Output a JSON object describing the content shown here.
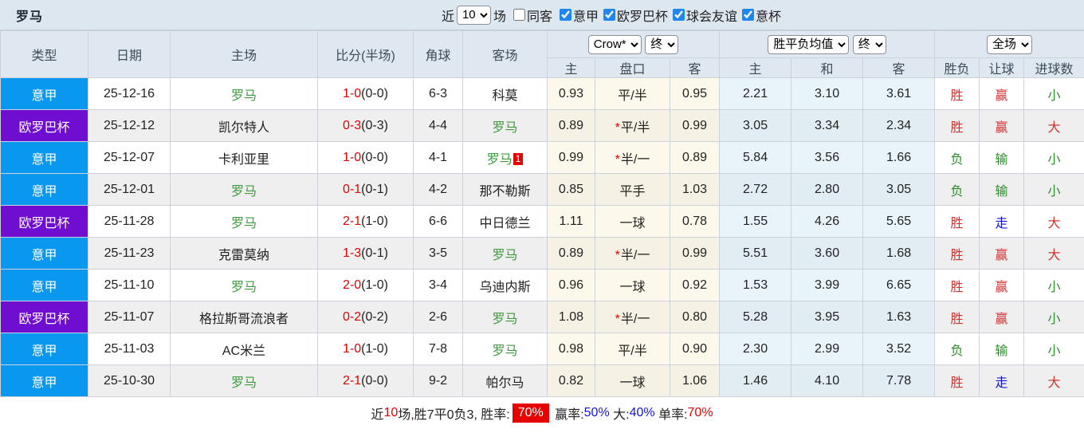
{
  "title": "罗马",
  "filter_bar": {
    "recent_label": "近",
    "recent_value": "10",
    "games_label": "场",
    "same_venue": {
      "label": "同客",
      "checked": false
    },
    "leagues": [
      {
        "label": "意甲",
        "checked": true
      },
      {
        "label": "欧罗巴杯",
        "checked": true
      },
      {
        "label": "球会友谊",
        "checked": true
      },
      {
        "label": "意杯",
        "checked": true
      }
    ]
  },
  "colors": {
    "serie_a": "#0a97ef",
    "europa": "#6f0dd0",
    "r": "#d7312e",
    "g": "#2e8b2e",
    "b": "#1414dc",
    "score_red": "#e60000"
  },
  "table": {
    "main_headers": [
      "类型",
      "日期",
      "主场",
      "比分(半场)",
      "角球",
      "客场"
    ],
    "selects": {
      "odds_source": "Crow*",
      "odds_source_time": "终",
      "avg_source": "胜平负均值",
      "avg_source_time": "终",
      "scope": "全场"
    },
    "sub_headers": [
      "主",
      "盘口",
      "客",
      "主",
      "和",
      "客",
      "胜负",
      "让球",
      "进球数"
    ],
    "rows": [
      {
        "league": "意甲",
        "lc": "serie_a",
        "date": "25-12-16",
        "home": "罗马",
        "home_roma": true,
        "score": "1-0",
        "half": "(0-0)",
        "corner": "6-3",
        "away": "科莫",
        "away_roma": false,
        "away_card": "",
        "star": false,
        "o1": "0.93",
        "hcap": "平/半",
        "o2": "0.95",
        "a1": "2.21",
        "a2": "3.10",
        "a3": "3.61",
        "spf": [
          "胜",
          "r"
        ],
        "rq": [
          "赢",
          "r"
        ],
        "jq": [
          "小",
          "g"
        ]
      },
      {
        "league": "欧罗巴杯",
        "lc": "europa",
        "date": "25-12-12",
        "home": "凯尔特人",
        "home_roma": false,
        "score": "0-3",
        "half": "(0-3)",
        "corner": "4-4",
        "away": "罗马",
        "away_roma": true,
        "away_card": "",
        "star": true,
        "o1": "0.89",
        "hcap": "平/半",
        "o2": "0.99",
        "a1": "3.05",
        "a2": "3.34",
        "a3": "2.34",
        "spf": [
          "胜",
          "r"
        ],
        "rq": [
          "赢",
          "r"
        ],
        "jq": [
          "大",
          "r"
        ]
      },
      {
        "league": "意甲",
        "lc": "serie_a",
        "date": "25-12-07",
        "home": "卡利亚里",
        "home_roma": false,
        "score": "1-0",
        "half": "(0-0)",
        "corner": "4-1",
        "away": "罗马",
        "away_roma": true,
        "away_card": "1",
        "star": true,
        "o1": "0.99",
        "hcap": "半/一",
        "o2": "0.89",
        "a1": "5.84",
        "a2": "3.56",
        "a3": "1.66",
        "spf": [
          "负",
          "g"
        ],
        "rq": [
          "输",
          "g"
        ],
        "jq": [
          "小",
          "g"
        ]
      },
      {
        "league": "意甲",
        "lc": "serie_a",
        "date": "25-12-01",
        "home": "罗马",
        "home_roma": true,
        "score": "0-1",
        "half": "(0-1)",
        "corner": "4-2",
        "away": "那不勒斯",
        "away_roma": false,
        "away_card": "",
        "star": false,
        "o1": "0.85",
        "hcap": "平手",
        "o2": "1.03",
        "a1": "2.72",
        "a2": "2.80",
        "a3": "3.05",
        "spf": [
          "负",
          "g"
        ],
        "rq": [
          "输",
          "g"
        ],
        "jq": [
          "小",
          "g"
        ]
      },
      {
        "league": "欧罗巴杯",
        "lc": "europa",
        "date": "25-11-28",
        "home": "罗马",
        "home_roma": true,
        "score": "2-1",
        "half": "(1-0)",
        "corner": "6-6",
        "away": "中日德兰",
        "away_roma": false,
        "away_card": "",
        "star": false,
        "o1": "1.11",
        "hcap": "一球",
        "o2": "0.78",
        "a1": "1.55",
        "a2": "4.26",
        "a3": "5.65",
        "spf": [
          "胜",
          "r"
        ],
        "rq": [
          "走",
          "b"
        ],
        "jq": [
          "大",
          "r"
        ]
      },
      {
        "league": "意甲",
        "lc": "serie_a",
        "date": "25-11-23",
        "home": "克雷莫纳",
        "home_roma": false,
        "score": "1-3",
        "half": "(0-1)",
        "corner": "3-5",
        "away": "罗马",
        "away_roma": true,
        "away_card": "",
        "star": true,
        "o1": "0.89",
        "hcap": "半/一",
        "o2": "0.99",
        "a1": "5.51",
        "a2": "3.60",
        "a3": "1.68",
        "spf": [
          "胜",
          "r"
        ],
        "rq": [
          "赢",
          "r"
        ],
        "jq": [
          "大",
          "r"
        ]
      },
      {
        "league": "意甲",
        "lc": "serie_a",
        "date": "25-11-10",
        "home": "罗马",
        "home_roma": true,
        "score": "2-0",
        "half": "(1-0)",
        "corner": "3-4",
        "away": "乌迪内斯",
        "away_roma": false,
        "away_card": "",
        "star": false,
        "o1": "0.96",
        "hcap": "一球",
        "o2": "0.92",
        "a1": "1.53",
        "a2": "3.99",
        "a3": "6.65",
        "spf": [
          "胜",
          "r"
        ],
        "rq": [
          "赢",
          "r"
        ],
        "jq": [
          "小",
          "g"
        ]
      },
      {
        "league": "欧罗巴杯",
        "lc": "europa",
        "date": "25-11-07",
        "home": "格拉斯哥流浪者",
        "home_roma": false,
        "score": "0-2",
        "half": "(0-2)",
        "corner": "2-6",
        "away": "罗马",
        "away_roma": true,
        "away_card": "",
        "star": true,
        "o1": "1.08",
        "hcap": "半/一",
        "o2": "0.80",
        "a1": "5.28",
        "a2": "3.95",
        "a3": "1.63",
        "spf": [
          "胜",
          "r"
        ],
        "rq": [
          "赢",
          "r"
        ],
        "jq": [
          "小",
          "g"
        ]
      },
      {
        "league": "意甲",
        "lc": "serie_a",
        "date": "25-11-03",
        "home": "AC米兰",
        "home_roma": false,
        "score": "1-0",
        "half": "(1-0)",
        "corner": "7-8",
        "away": "罗马",
        "away_roma": true,
        "away_card": "",
        "star": false,
        "o1": "0.98",
        "hcap": "平/半",
        "o2": "0.90",
        "a1": "2.30",
        "a2": "2.99",
        "a3": "3.52",
        "spf": [
          "负",
          "g"
        ],
        "rq": [
          "输",
          "g"
        ],
        "jq": [
          "小",
          "g"
        ]
      },
      {
        "league": "意甲",
        "lc": "serie_a",
        "date": "25-10-30",
        "home": "罗马",
        "home_roma": true,
        "score": "2-1",
        "half": "(0-0)",
        "corner": "9-2",
        "away": "帕尔马",
        "away_roma": false,
        "away_card": "",
        "star": false,
        "o1": "0.82",
        "hcap": "一球",
        "o2": "1.06",
        "a1": "1.46",
        "a2": "4.10",
        "a3": "7.78",
        "spf": [
          "胜",
          "r"
        ],
        "rq": [
          "走",
          "b"
        ],
        "jq": [
          "大",
          "r"
        ]
      }
    ]
  },
  "footer": {
    "segments": [
      {
        "text": "近",
        "style": ""
      },
      {
        "text": "10",
        "style": "r"
      },
      {
        "text": "场,胜7平0负3, 胜率:",
        "style": ""
      },
      {
        "text": "70%",
        "style": "badge"
      },
      {
        "text": " 赢率:",
        "style": ""
      },
      {
        "text": "50%",
        "style": "b"
      },
      {
        "text": " 大:",
        "style": ""
      },
      {
        "text": "40%",
        "style": "b"
      },
      {
        "text": " 单率:",
        "style": ""
      },
      {
        "text": "70%",
        "style": "r"
      }
    ]
  }
}
